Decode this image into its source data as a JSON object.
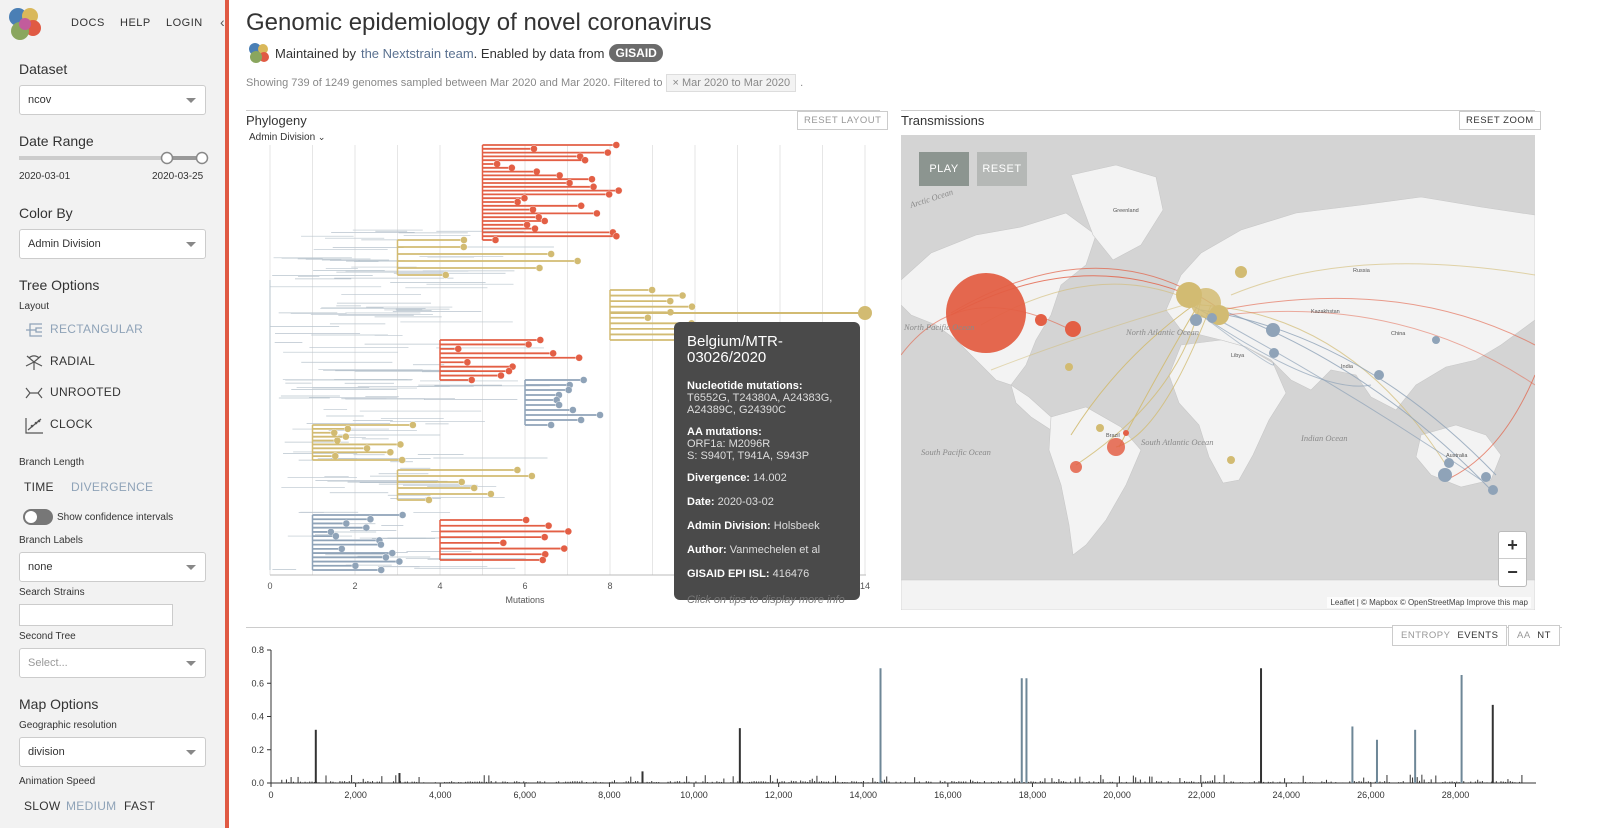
{
  "nav": {
    "docs": "DOCS",
    "help": "HELP",
    "login": "LOGIN"
  },
  "sidebar": {
    "dataset_label": "Dataset",
    "dataset_value": "ncov",
    "date_range_label": "Date Range",
    "date_start": "2020-03-01",
    "date_end": "2020-03-25",
    "color_by_label": "Color By",
    "color_by_value": "Admin Division",
    "tree_options_label": "Tree Options",
    "layout_label": "Layout",
    "layouts": [
      "RECTANGULAR",
      "RADIAL",
      "UNROOTED",
      "CLOCK"
    ],
    "branch_length_label": "Branch Length",
    "branch_time": "TIME",
    "branch_divergence": "DIVERGENCE",
    "confidence_label": "Show confidence intervals",
    "branch_labels_label": "Branch Labels",
    "branch_labels_value": "none",
    "search_strains_label": "Search Strains",
    "second_tree_label": "Second Tree",
    "second_tree_placeholder": "Select...",
    "map_options_label": "Map Options",
    "geo_res_label": "Geographic resolution",
    "geo_res_value": "division",
    "anim_speed_label": "Animation Speed",
    "speed_slow": "SLOW",
    "speed_medium": "MEDIUM",
    "speed_fast": "FAST"
  },
  "header": {
    "title": "Genomic epidemiology of novel coronavirus",
    "maintained_by": "Maintained by",
    "team": "the Nextstrain team",
    "enabled_by": ". Enabled by data from",
    "gisaid": "GISAID",
    "showing": "Showing 739 of 1249 genomes sampled between Mar 2020 and Mar 2020. Filtered to",
    "filter_x": "×",
    "filter": "Mar 2020 to Mar 2020",
    "period": "."
  },
  "phylogeny": {
    "title": "Phylogeny",
    "colorby": "Admin Division",
    "reset_layout": "RESET LAYOUT",
    "x_ticks": [
      "0",
      "2",
      "4",
      "6",
      "8",
      "14"
    ],
    "x_label": "Mutations"
  },
  "tooltip": {
    "title": "Belgium/MTR-03026/2020",
    "nuc_label": "Nucleotide mutations:",
    "nuc_value": "T6552G, T24380A, A24383G, A24389C, G24390C",
    "aa_label": "AA mutations:",
    "aa_orf1a": "ORF1a:  M2096R",
    "aa_s": "S:  S940T, T941A, S943P",
    "divergence_label": "Divergence:",
    "divergence_value": "14.002",
    "date_label": "Date:",
    "date_value": "2020-03-02",
    "admin_label": "Admin Division:",
    "admin_value": "Holsbeek",
    "author_label": "Author:",
    "author_value": "Vanmechelen et al",
    "epi_label": "GISAID EPI ISL:",
    "epi_value": "416476",
    "hint": "Click on tips to display more info"
  },
  "transmissions": {
    "title": "Transmissions",
    "reset_zoom": "RESET ZOOM",
    "play": "PLAY",
    "reset": "RESET",
    "zoom_in": "+",
    "zoom_out": "−",
    "attribution": "Leaflet | © Mapbox © OpenStreetMap Improve this map",
    "labels": {
      "arctic": "Arctic Ocean",
      "north_pacific": "North Pacific Ocean",
      "north_atlantic": "North Atlantic Ocean",
      "south_pacific": "South Pacific Ocean",
      "south_atlantic": "South Atlantic Ocean",
      "indian": "Indian Ocean",
      "greenland": "Greenland",
      "russia": "Russia",
      "kazakhstan": "Kazakhstan",
      "india": "India",
      "china": "China",
      "libya": "Libya",
      "brazil": "Brazil",
      "australia": "Australia"
    }
  },
  "entropy": {
    "tab_entropy": "ENTROPY",
    "tab_events": "EVENTS",
    "tab_aa": "AA",
    "tab_nt": "NT",
    "y_ticks": [
      "0.8",
      "0.6",
      "0.4",
      "0.2",
      "0.0"
    ],
    "x_ticks": [
      "0",
      "2,000",
      "4,000",
      "6,000",
      "8,000",
      "10,000",
      "12,000",
      "14,000",
      "16,000",
      "18,000",
      "20,000",
      "22,000",
      "24,000",
      "26,000",
      "28,000"
    ]
  },
  "colors": {
    "accent": "#e05a44",
    "sidebar_bg": "#f2f2f2",
    "tree_red": "#e35f45",
    "tree_tan": "#d2bb72",
    "tree_blue": "#8fa3b8",
    "map_bg": "#d4d4d4",
    "map_land": "#f3f3f3"
  },
  "chart_data": {
    "type": "bar",
    "ylim": [
      0,
      0.8
    ],
    "xlim": [
      0,
      29903
    ],
    "x": [
      1059,
      3037,
      8782,
      11083,
      14408,
      17747,
      17858,
      23403,
      25563,
      26144,
      27046,
      28144,
      28881
    ],
    "values": [
      0.32,
      0.06,
      0.07,
      0.33,
      0.69,
      0.63,
      0.63,
      0.69,
      0.34,
      0.26,
      0.32,
      0.65,
      0.47
    ],
    "series_colors": [
      "#333333",
      "#333333",
      "#333333",
      "#333333",
      "#6e8797",
      "#6e8797",
      "#6e8797",
      "#333333",
      "#6e8797",
      "#6e8797",
      "#6e8797",
      "#6e8797",
      "#333333"
    ]
  }
}
